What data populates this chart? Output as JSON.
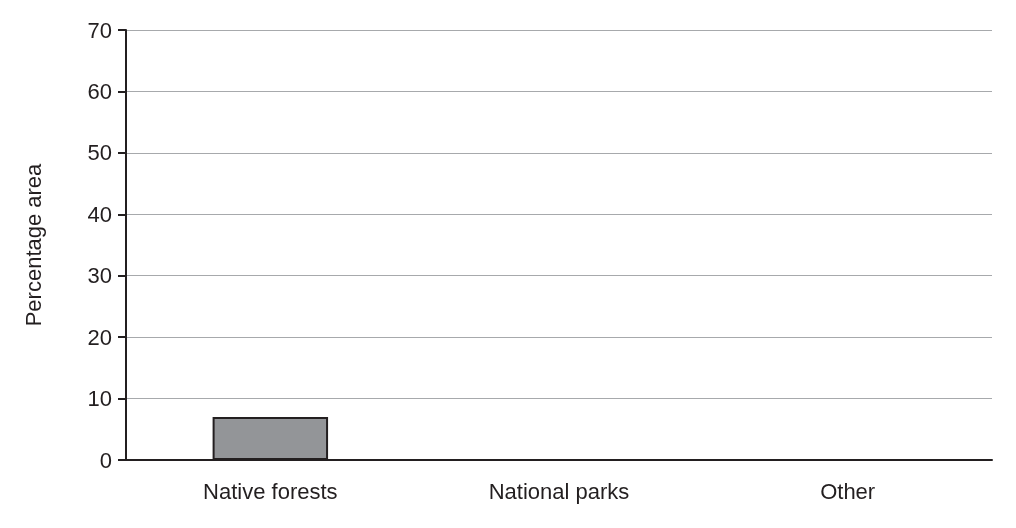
{
  "chart_data": {
    "type": "bar",
    "ylabel": "Percentage area",
    "categories": [
      "Native forests",
      "National parks",
      "Other"
    ],
    "values": [
      7,
      0,
      0
    ],
    "color": "#939598",
    "ylim": [
      0,
      70
    ],
    "yticks": [
      0,
      10,
      20,
      30,
      40,
      50,
      60,
      70
    ],
    "grid": "y"
  }
}
